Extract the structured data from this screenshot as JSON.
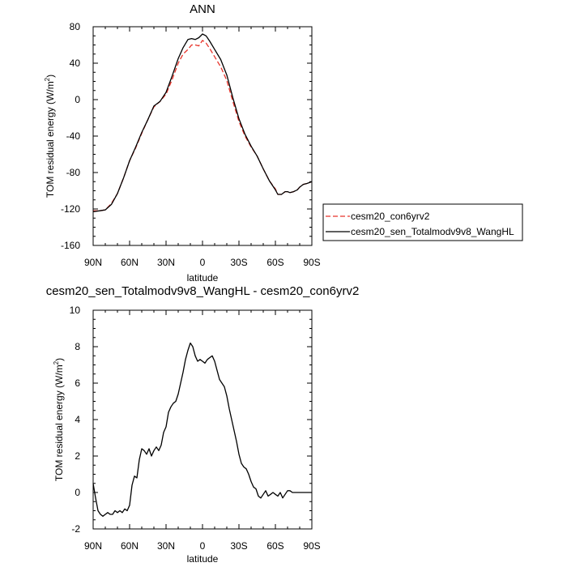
{
  "chart_data": [
    {
      "type": "line",
      "title": "ANN",
      "xlabel": "latitude",
      "ylabel": "TOM residual energy (W/m²)",
      "ylabel_main": "TOM residual energy (W/m",
      "ylabel_sup": "2",
      "ylabel_close": ")",
      "xlim": [
        -90,
        90
      ],
      "ylim": [
        -160,
        80
      ],
      "xticks": [
        -90,
        -60,
        -30,
        0,
        30,
        60,
        90
      ],
      "xtick_labels": [
        "90N",
        "60N",
        "30N",
        "0",
        "30S",
        "60S",
        "90S"
      ],
      "yticks": [
        -160,
        -120,
        -80,
        -40,
        0,
        40,
        80
      ],
      "ytick_labels": [
        "-160",
        "-120",
        "-80",
        "-40",
        "0",
        "40",
        "80"
      ],
      "legend_position": "right",
      "series": [
        {
          "name": "cesm20_con6yrv2",
          "color": "#e8332a",
          "dash": "dashed",
          "x": [
            -90,
            -85,
            -80,
            -75,
            -70,
            -65,
            -60,
            -55,
            -50,
            -45,
            -40,
            -35,
            -30,
            -25,
            -20,
            -16,
            -12,
            -9,
            -6,
            -3,
            0,
            3,
            6,
            10,
            15,
            20,
            25,
            30,
            35,
            40,
            45,
            50,
            55,
            60,
            62,
            65,
            68,
            70,
            72,
            75,
            78,
            80,
            83,
            86,
            88,
            90
          ],
          "y": [
            -122,
            -122,
            -121,
            -114,
            -103,
            -86,
            -67,
            -53,
            -37,
            -22,
            -8,
            -2,
            6,
            22,
            40,
            50,
            55,
            60,
            60,
            59,
            65,
            62,
            56,
            47,
            36,
            21,
            -2,
            -24,
            -40,
            -52,
            -62,
            -76,
            -89,
            -98,
            -104,
            -104,
            -101,
            -101,
            -102,
            -101,
            -99,
            -96,
            -93,
            -92,
            -91,
            -90
          ]
        },
        {
          "name": "cesm20_sen_Totalmodv9v8_WangHL",
          "color": "#000000",
          "dash": "solid",
          "x": [
            -90,
            -85,
            -80,
            -75,
            -70,
            -65,
            -60,
            -55,
            -50,
            -45,
            -40,
            -35,
            -30,
            -25,
            -20,
            -16,
            -12,
            -9,
            -6,
            -3,
            0,
            3,
            6,
            10,
            15,
            20,
            25,
            30,
            35,
            40,
            45,
            50,
            55,
            60,
            62,
            65,
            68,
            70,
            72,
            75,
            78,
            80,
            83,
            86,
            88,
            90
          ],
          "y": [
            -123,
            -122,
            -121,
            -115,
            -103,
            -86,
            -67,
            -52,
            -36,
            -22,
            -7,
            -2,
            8,
            26,
            45,
            57,
            66,
            67,
            66,
            68,
            72,
            70,
            64,
            55,
            44,
            27,
            2,
            -21,
            -38,
            -51,
            -62,
            -76,
            -89,
            -99,
            -104,
            -104,
            -101,
            -101,
            -102,
            -101,
            -99,
            -96,
            -93,
            -92,
            -91,
            -90
          ]
        }
      ]
    },
    {
      "type": "line",
      "title": "cesm20_sen_Totalmodv9v8_WangHL - cesm20_con6yrv2",
      "xlabel": "latitude",
      "ylabel": "TOM residual energy (W/m²)",
      "ylabel_main": "TOM residual energy (W/m",
      "ylabel_sup": "2",
      "ylabel_close": ")",
      "xlim": [
        -90,
        90
      ],
      "ylim": [
        -2,
        10
      ],
      "xticks": [
        -90,
        -60,
        -30,
        0,
        30,
        60,
        90
      ],
      "xtick_labels": [
        "90N",
        "60N",
        "30N",
        "0",
        "30S",
        "60S",
        "90S"
      ],
      "yticks": [
        -2,
        0,
        2,
        4,
        6,
        8,
        10
      ],
      "ytick_labels": [
        "-2",
        "0",
        "2",
        "4",
        "6",
        "8",
        "10"
      ],
      "series": [
        {
          "color": "#000000",
          "dash": "solid",
          "x": [
            -90,
            -88,
            -86,
            -84,
            -82,
            -80,
            -78,
            -76,
            -74,
            -72,
            -70,
            -68,
            -66,
            -64,
            -62,
            -60,
            -58,
            -56,
            -54,
            -52,
            -50,
            -48,
            -46,
            -44,
            -42,
            -40,
            -38,
            -36,
            -34,
            -32,
            -30,
            -28,
            -26,
            -24,
            -22,
            -20,
            -18,
            -16,
            -14,
            -12,
            -10,
            -8,
            -6,
            -4,
            -2,
            0,
            2,
            4,
            6,
            8,
            10,
            12,
            14,
            16,
            18,
            20,
            22,
            24,
            26,
            28,
            30,
            32,
            34,
            36,
            38,
            40,
            42,
            44,
            46,
            48,
            50,
            52,
            54,
            56,
            58,
            60,
            62,
            64,
            66,
            68,
            70,
            72,
            74,
            76,
            78,
            80,
            82,
            84,
            86,
            88,
            90
          ],
          "y": [
            0.5,
            -0.3,
            -1.0,
            -1.2,
            -1.3,
            -1.2,
            -1.1,
            -1.2,
            -1.2,
            -1.0,
            -1.1,
            -1.0,
            -1.1,
            -0.9,
            -1.0,
            -0.7,
            0.4,
            0.9,
            0.8,
            1.8,
            2.4,
            2.3,
            2.1,
            2.4,
            2.0,
            2.3,
            2.5,
            2.3,
            2.6,
            3.3,
            3.6,
            4.4,
            4.7,
            4.9,
            5.0,
            5.4,
            6.0,
            6.6,
            7.3,
            7.8,
            8.2,
            8.0,
            7.5,
            7.2,
            7.3,
            7.2,
            7.1,
            7.3,
            7.4,
            7.5,
            7.2,
            6.7,
            6.2,
            6.0,
            5.8,
            5.3,
            4.6,
            4.0,
            3.4,
            2.8,
            2.1,
            1.6,
            1.4,
            1.3,
            1.0,
            0.6,
            0.3,
            0.2,
            -0.2,
            -0.3,
            -0.1,
            0.1,
            -0.2,
            -0.1,
            0.0,
            -0.1,
            -0.2,
            0.0,
            -0.3,
            -0.1,
            0.1,
            0.1,
            0.0,
            0.0,
            0.0,
            0.0,
            0.0,
            0.0,
            0.0,
            0.0,
            0.0
          ]
        }
      ]
    }
  ]
}
